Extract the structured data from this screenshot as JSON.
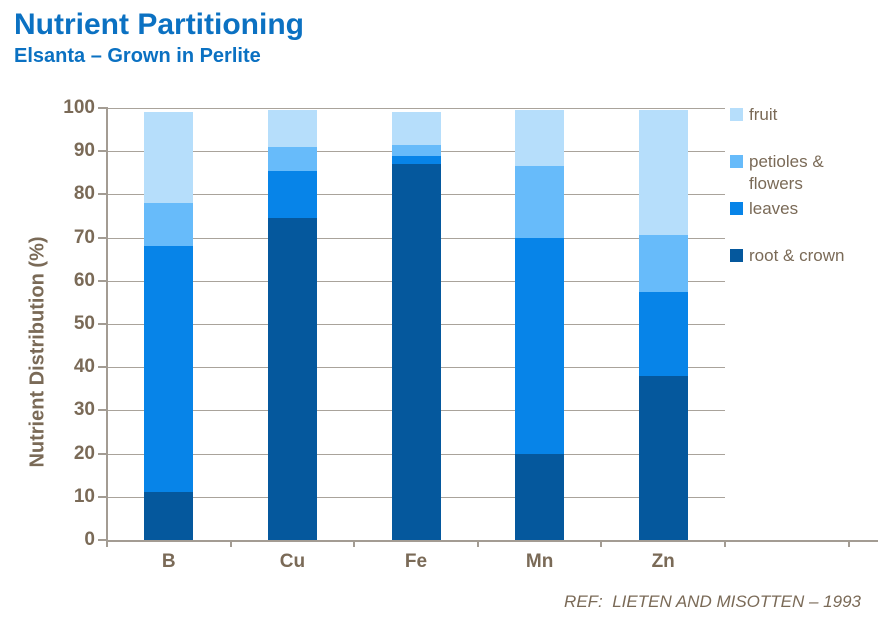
{
  "header": {
    "title": "Nutrient Partitioning",
    "subtitle": "Elsanta – Grown in Perlite"
  },
  "footer": {
    "ref": "REF:  LIETEN AND MISOTTEN – 1993"
  },
  "colors": {
    "title_blue": "#0b71c2",
    "axis_text_brown": "#7a6a57",
    "gridline_gray": "#a9a39b",
    "root_crown": "#05589d",
    "leaves": "#0784e8",
    "petioles_flowers": "#67bbfa",
    "fruit": "#b6defb"
  },
  "chart_data": {
    "type": "bar",
    "stacked": true,
    "title": "Nutrient Partitioning",
    "subtitle": "Elsanta – Grown in Perlite",
    "categories": [
      "B",
      "Cu",
      "Fe",
      "Mn",
      "Zn"
    ],
    "series": [
      {
        "name": "root & crown",
        "color": "#05589d",
        "values": [
          11,
          74.5,
          87,
          20,
          38
        ]
      },
      {
        "name": "leaves",
        "color": "#0784e8",
        "values": [
          57,
          11,
          2,
          50,
          19.5
        ]
      },
      {
        "name": "petioles & flowers",
        "color": "#67bbfa",
        "values": [
          10,
          5.5,
          2.5,
          16.5,
          13
        ]
      },
      {
        "name": "fruit",
        "color": "#b6defb",
        "values": [
          21,
          8.5,
          7.5,
          13,
          29
        ]
      }
    ],
    "xlabel": "",
    "ylabel": "Nutrient Distribution (%)",
    "ylim": [
      0,
      100
    ],
    "yticks": [
      0,
      10,
      20,
      30,
      40,
      50,
      60,
      70,
      80,
      90,
      100
    ],
    "grid": true,
    "legend_position": "right",
    "legend_order": [
      "fruit",
      "petioles & flowers",
      "leaves",
      "root & crown"
    ]
  }
}
